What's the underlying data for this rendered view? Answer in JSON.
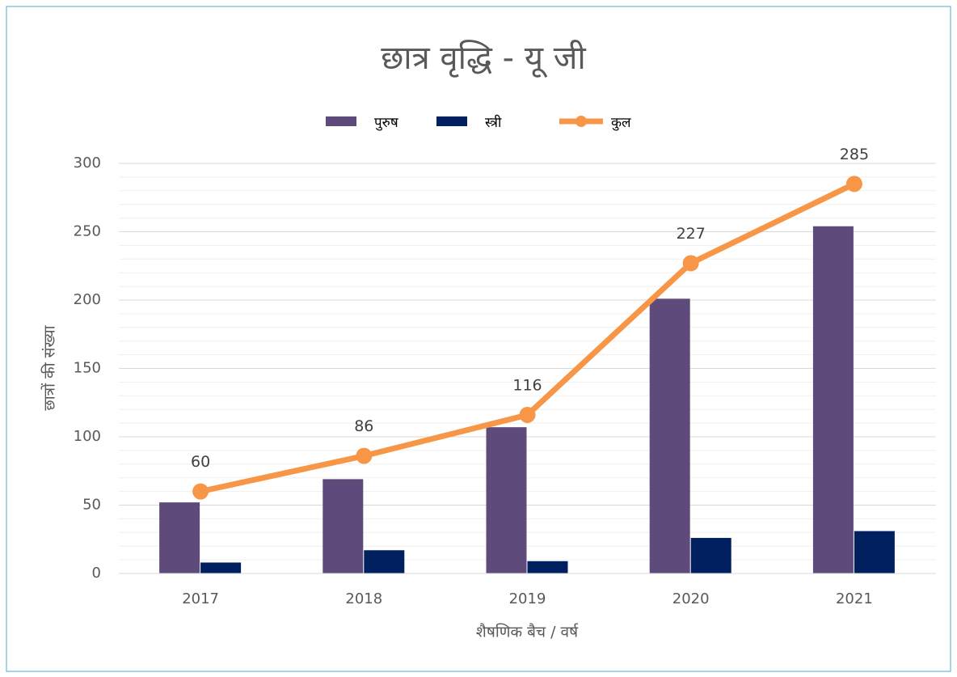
{
  "chart_data": {
    "type": "bar_line",
    "title": "छात्र वृद्धि - यू जी",
    "x_label": "शैषणिक बैच / वर्ष",
    "y_label": "छात्रों की संख्या",
    "categories": [
      "2017",
      "2018",
      "2019",
      "2020",
      "2021"
    ],
    "series": [
      {
        "name": "पुरुष",
        "type": "bar",
        "color": "#5f4b7b",
        "values": [
          52,
          69,
          107,
          201,
          254
        ]
      },
      {
        "name": "स्त्री",
        "type": "bar",
        "color": "#002060",
        "values": [
          8,
          17,
          9,
          26,
          31
        ]
      },
      {
        "name": "कुल",
        "type": "line",
        "color": "#f79646",
        "values": [
          60,
          86,
          116,
          227,
          285
        ],
        "data_labels": true
      }
    ],
    "ylim": [
      0,
      300
    ],
    "yticks": [
      0,
      50,
      100,
      150,
      200,
      250,
      300
    ],
    "grid": true,
    "minor_grid": true,
    "legend": "top"
  }
}
